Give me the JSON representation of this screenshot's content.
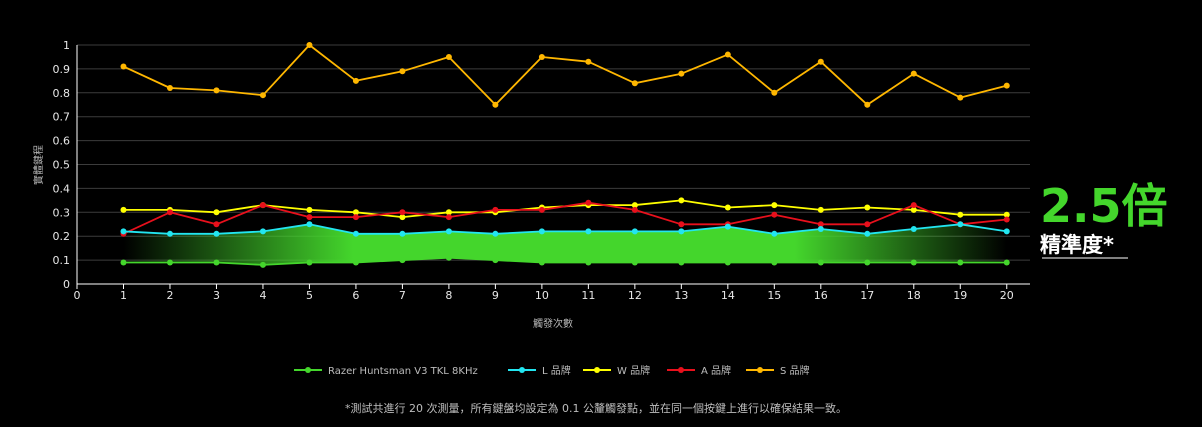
{
  "chart_data": {
    "type": "line",
    "x": [
      1,
      2,
      3,
      4,
      5,
      6,
      7,
      8,
      9,
      10,
      11,
      12,
      13,
      14,
      15,
      16,
      17,
      18,
      19,
      20
    ],
    "xticks": [
      0,
      1,
      2,
      3,
      4,
      5,
      6,
      7,
      8,
      9,
      10,
      11,
      12,
      13,
      14,
      15,
      16,
      17,
      18,
      19,
      20
    ],
    "xlim": [
      0,
      20.5
    ],
    "ylim": [
      0,
      1
    ],
    "yticks": [
      0,
      0.1,
      0.2,
      0.3,
      0.4,
      0.5,
      0.6,
      0.7,
      0.8,
      0.9,
      1
    ],
    "xlabel": "觸發次數",
    "ylabel": "實體鍵程",
    "grid": true,
    "legend_position": "bottom",
    "series": [
      {
        "name": "Razer Huntsman V3 TKL 8KHz",
        "color": "#44d62c",
        "values": [
          0.09,
          0.09,
          0.09,
          0.08,
          0.09,
          0.09,
          0.1,
          0.11,
          0.1,
          0.09,
          0.09,
          0.09,
          0.09,
          0.09,
          0.09,
          0.09,
          0.09,
          0.09,
          0.09,
          0.09
        ]
      },
      {
        "name": "L 品牌",
        "color": "#22e5f0",
        "values": [
          0.22,
          0.21,
          0.21,
          0.22,
          0.25,
          0.21,
          0.21,
          0.22,
          0.21,
          0.22,
          0.22,
          0.22,
          0.22,
          0.24,
          0.21,
          0.23,
          0.21,
          0.23,
          0.25,
          0.22
        ]
      },
      {
        "name": "W 品牌",
        "color": "#ffff00",
        "values": [
          0.31,
          0.31,
          0.3,
          0.33,
          0.31,
          0.3,
          0.28,
          0.3,
          0.3,
          0.32,
          0.33,
          0.33,
          0.35,
          0.32,
          0.33,
          0.31,
          0.32,
          0.31,
          0.29,
          0.29
        ]
      },
      {
        "name": "A 品牌",
        "color": "#e8101c",
        "values": [
          0.21,
          0.3,
          0.25,
          0.33,
          0.28,
          0.28,
          0.3,
          0.28,
          0.31,
          0.31,
          0.34,
          0.31,
          0.25,
          0.25,
          0.29,
          0.25,
          0.25,
          0.33,
          0.25,
          0.27
        ]
      },
      {
        "name": "S 品牌",
        "color": "#ffb700",
        "values": [
          0.91,
          0.82,
          0.81,
          0.79,
          1.0,
          0.85,
          0.89,
          0.95,
          0.75,
          0.95,
          0.93,
          0.84,
          0.88,
          0.96,
          0.8,
          0.93,
          0.75,
          0.88,
          0.78,
          0.83
        ]
      }
    ],
    "highlight_band": {
      "lower_series": 0,
      "upper_series": 1,
      "color": "#44d62c"
    },
    "callout": {
      "value": "2.5倍",
      "label": "精準度*"
    },
    "footnote": "*測試共進行 20 次測量，所有鍵盤均設定為 0.1 公釐觸發點，並在同一個按鍵上進行以確保結果一致。"
  }
}
